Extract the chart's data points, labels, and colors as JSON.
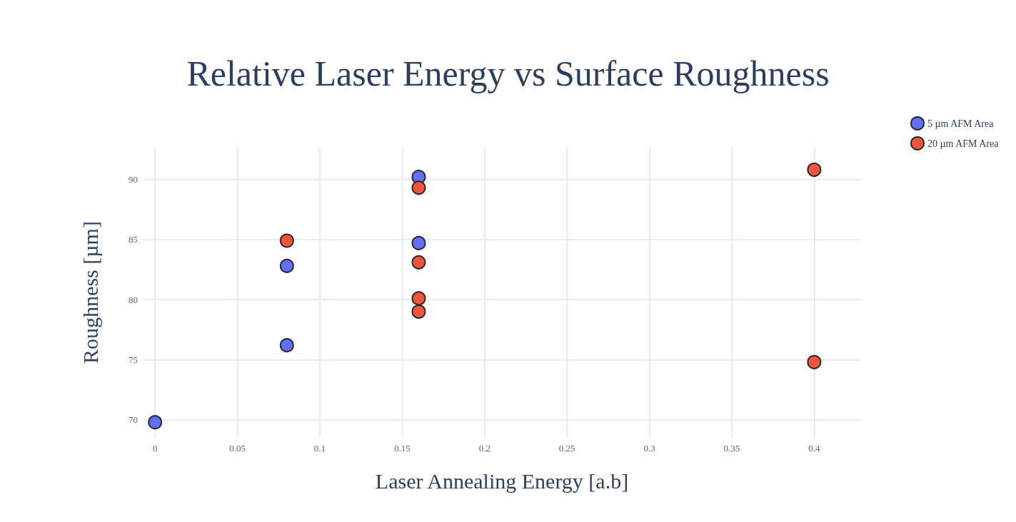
{
  "chart_data": {
    "type": "scatter",
    "title": "Relative Laser Energy vs Surface Roughness",
    "xlabel": "Laser Annealing Energy [a.b]",
    "ylabel": "Roughness [µm]",
    "series": [
      {
        "name": "5 µm AFM Area",
        "color": "#636efa",
        "x": [
          0,
          0.08,
          0.08,
          0.16,
          0.16
        ],
        "values": [
          69.8,
          82.8,
          76.2,
          90.2,
          84.7
        ]
      },
      {
        "name": "20 µm AFM Area",
        "color": "#ef553b",
        "x": [
          0.08,
          0.16,
          0.16,
          0.16,
          0.16,
          0.4,
          0.4
        ],
        "values": [
          84.9,
          89.3,
          83.1,
          80.1,
          79.0,
          90.8,
          74.8
        ]
      }
    ],
    "xlim": [
      -0.007,
      0.428
    ],
    "xticks": [
      0,
      0.05,
      0.1,
      0.15,
      0.2,
      0.25,
      0.3,
      0.35,
      0.4
    ],
    "ylim": [
      68.5,
      92.7
    ],
    "yticks": [
      70,
      75,
      80,
      85,
      90
    ],
    "grid": true,
    "legend": "top right",
    "marker": "circle"
  }
}
